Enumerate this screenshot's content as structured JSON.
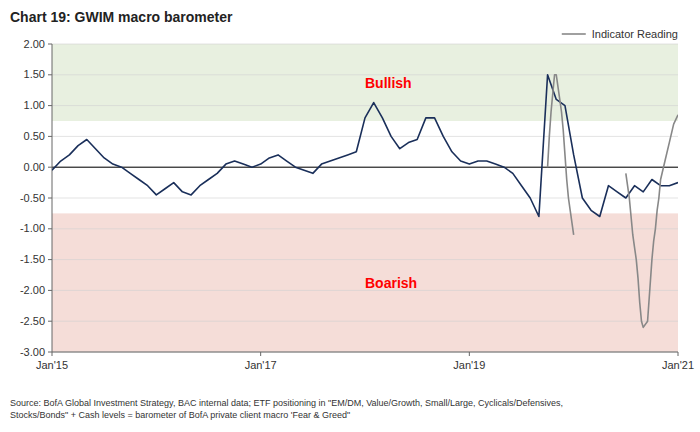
{
  "chart_data": {
    "type": "line",
    "title": "Chart 19: GWIM macro barometer",
    "source": "Source: BofA Global Investment Strategy, BAC internal data; ETF positioning in \"EM/DM, Value/Growth, Small/Large, Cyclicals/Defensives,\nStocks/Bonds\" + Cash levels = barometer of BofA private client macro 'Fear & Greed\"",
    "xlim": [
      0,
      72
    ],
    "xticks": [
      {
        "value": 0,
        "label": "Jan'15"
      },
      {
        "value": 24,
        "label": "Jan'17"
      },
      {
        "value": 48,
        "label": "Jan'19"
      },
      {
        "value": 72,
        "label": "Jan'21"
      }
    ],
    "ylim": [
      -3.0,
      2.0
    ],
    "yticks": [
      {
        "value": -3.0,
        "label": "-3.00"
      },
      {
        "value": -2.5,
        "label": "-2.50"
      },
      {
        "value": -2.0,
        "label": "-2.00"
      },
      {
        "value": -1.5,
        "label": "-1.50"
      },
      {
        "value": -1.0,
        "label": "-1.00"
      },
      {
        "value": -0.5,
        "label": "-0.50"
      },
      {
        "value": 0.0,
        "label": "0.00"
      },
      {
        "value": 0.5,
        "label": "0.50"
      },
      {
        "value": 1.0,
        "label": "1.00"
      },
      {
        "value": 1.5,
        "label": "1.50"
      },
      {
        "value": 2.0,
        "label": "2.00"
      }
    ],
    "grid": true,
    "legend": "upper right",
    "reference_line": 0,
    "regions": [
      {
        "label": "Bullish",
        "from": 0.75,
        "to": 2.0,
        "color": "#e8f0e0",
        "label_color": "red"
      },
      {
        "label": "Boarish",
        "from": -3.0,
        "to": -0.75,
        "color": "#f5ddd8",
        "label_color": "red"
      }
    ],
    "series": [
      {
        "color": "#1a2f5a",
        "x": [
          0,
          1,
          2,
          3,
          4,
          5,
          6,
          7,
          8,
          9,
          10,
          11,
          12,
          13,
          14,
          15,
          16,
          17,
          18,
          19,
          20,
          21,
          22,
          23,
          24,
          25,
          26,
          27,
          28,
          29,
          30,
          31,
          32,
          33,
          34,
          35,
          36,
          37,
          38,
          39,
          40,
          41,
          42,
          43,
          44,
          45,
          46,
          47,
          48,
          49,
          50,
          51,
          52,
          53,
          54,
          55,
          56,
          57,
          58,
          59,
          60,
          61,
          62,
          63,
          64,
          65,
          66,
          67,
          68,
          69,
          70,
          71,
          72
        ],
        "values": [
          -0.05,
          0.1,
          0.2,
          0.35,
          0.45,
          0.3,
          0.15,
          0.05,
          0.0,
          -0.1,
          -0.2,
          -0.3,
          -0.45,
          -0.35,
          -0.25,
          -0.4,
          -0.45,
          -0.3,
          -0.2,
          -0.1,
          0.05,
          0.1,
          0.05,
          0.0,
          0.05,
          0.15,
          0.2,
          0.1,
          0.0,
          -0.05,
          -0.1,
          0.05,
          0.1,
          0.15,
          0.2,
          0.25,
          0.8,
          1.05,
          0.8,
          0.5,
          0.3,
          0.4,
          0.45,
          0.8,
          0.8,
          0.5,
          0.25,
          0.1,
          0.05,
          0.1,
          0.1,
          0.05,
          0.0,
          -0.1,
          -0.3,
          -0.5,
          -0.8,
          1.5,
          1.1,
          1.0,
          0.2,
          -0.5,
          -0.7,
          -0.8,
          -0.3,
          -0.4,
          -0.5,
          -0.3,
          -0.4,
          -0.2,
          -0.3,
          -0.3,
          -0.25
        ]
      },
      {
        "name": "Indicator Reading",
        "color": "#888888",
        "x": [
          57,
          57.2,
          57.4,
          57.6,
          57.8,
          58,
          58.2,
          58.4,
          58.6,
          58.8,
          59,
          59.2,
          59.4,
          59.6,
          59.8,
          60
        ],
        "values": [
          0.0,
          0.5,
          0.9,
          1.2,
          1.5,
          1.5,
          1.3,
          1.1,
          0.9,
          0.6,
          0.2,
          -0.2,
          -0.5,
          -0.7,
          -0.9,
          -1.1
        ]
      },
      {
        "color": "#888888",
        "x": [
          66,
          66.2,
          66.4,
          66.6,
          66.8,
          67,
          67.2,
          67.4,
          67.6,
          67.8,
          68,
          68.5,
          69,
          69.2,
          69.4,
          69.6,
          69.8,
          70,
          70.5,
          71,
          71.5,
          72
        ],
        "values": [
          -0.1,
          -0.3,
          -0.5,
          -0.8,
          -1.1,
          -1.3,
          -1.5,
          -1.8,
          -2.2,
          -2.5,
          -2.6,
          -2.5,
          -1.5,
          -1.2,
          -1.0,
          -0.7,
          -0.5,
          -0.2,
          0.1,
          0.4,
          0.7,
          0.85
        ]
      }
    ]
  }
}
